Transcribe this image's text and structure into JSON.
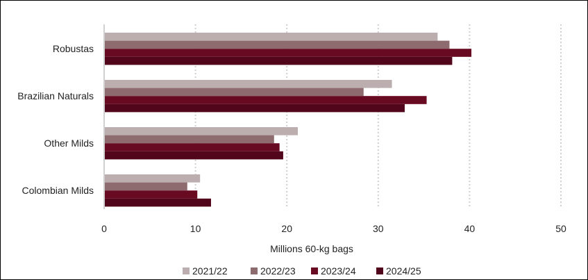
{
  "chart_data": {
    "type": "bar",
    "orientation": "horizontal",
    "categories": [
      "Robustas",
      "Brazilian Naturals",
      "Other Milds",
      "Colombian Milds"
    ],
    "series": [
      {
        "name": "2021/22",
        "color": "#bcaeae",
        "values": [
          36.5,
          31.5,
          21.2,
          10.5
        ]
      },
      {
        "name": "2022/23",
        "color": "#8e6b6e",
        "values": [
          37.8,
          28.4,
          18.6,
          9.1
        ]
      },
      {
        "name": "2023/24",
        "color": "#670a22",
        "values": [
          40.2,
          35.3,
          19.2,
          10.2
        ]
      },
      {
        "name": "2024/25",
        "color": "#52061b",
        "values": [
          38.1,
          32.9,
          19.6,
          11.7
        ]
      }
    ],
    "xlabel": "Millions 60-kg bags",
    "xlim": [
      0,
      50
    ],
    "xticks": [
      0,
      10,
      20,
      30,
      40,
      50
    ],
    "grid": "vertical dotted",
    "legend": "bottom"
  }
}
